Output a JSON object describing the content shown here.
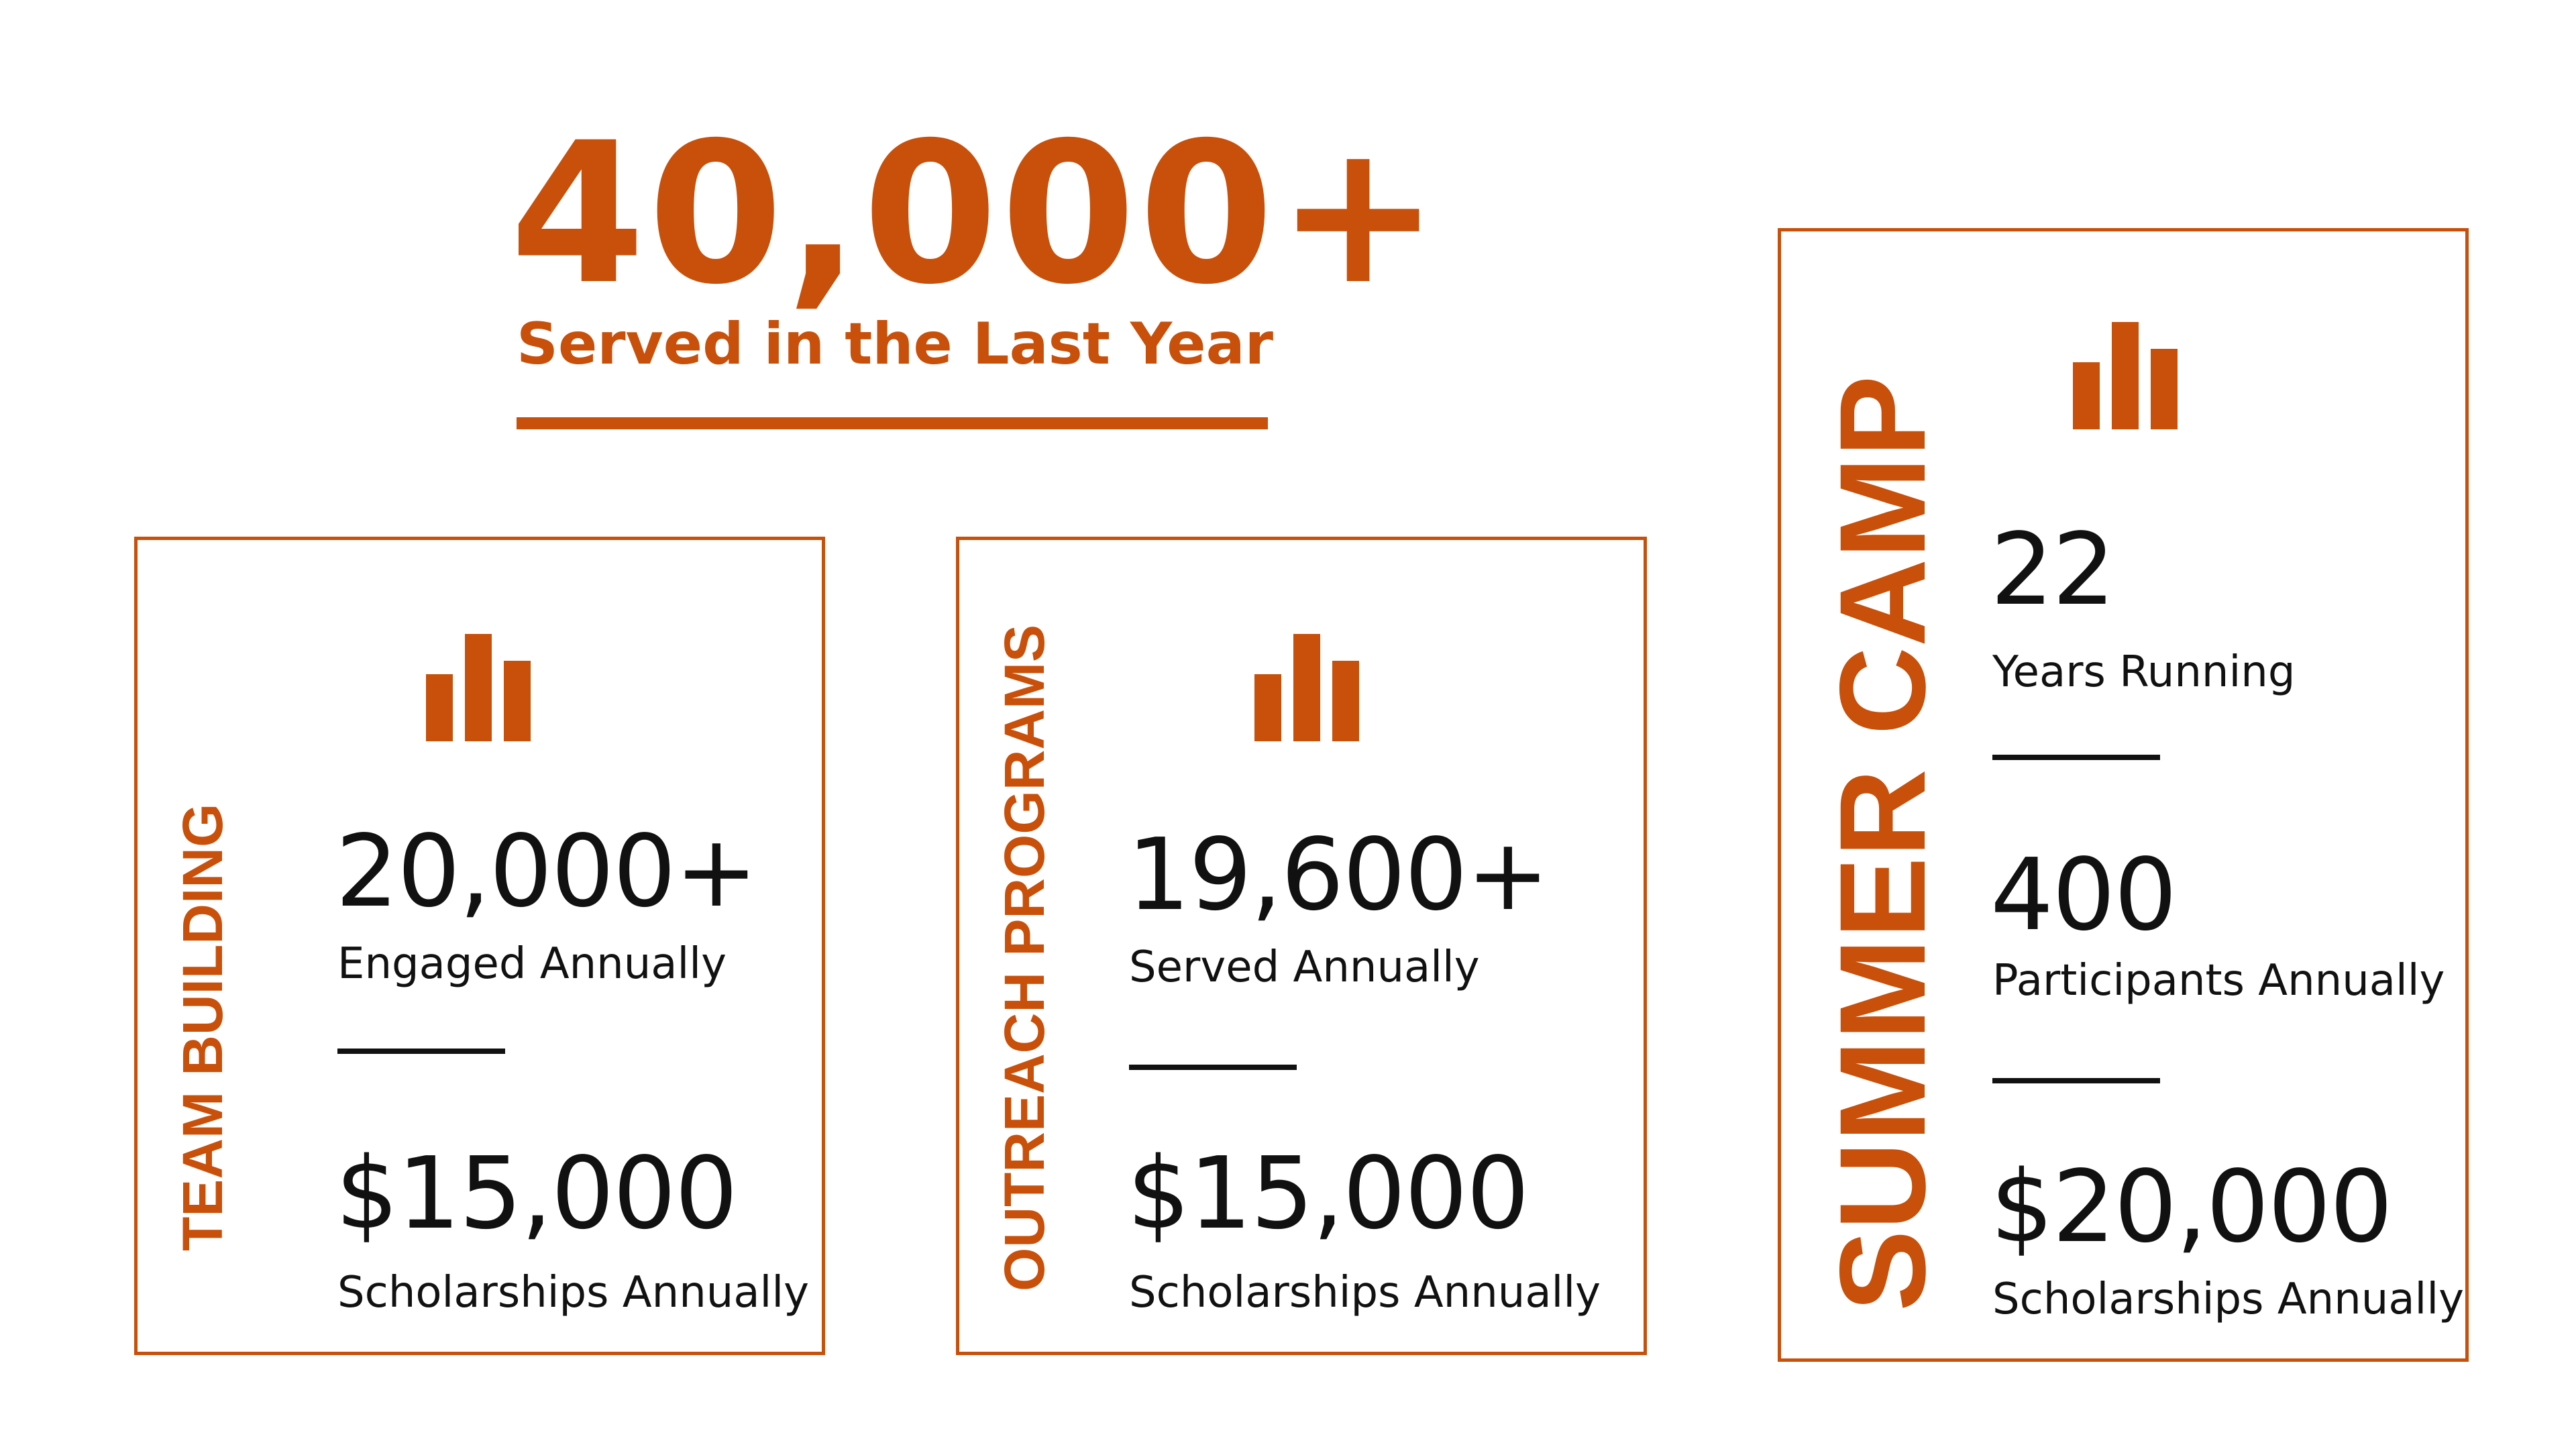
{
  "hero": {
    "number": "40,000+",
    "subtitle": "Served in the Last Year"
  },
  "colors": {
    "accent": "#c8500a",
    "text": "#111111",
    "background": "#ffffff"
  },
  "cards": [
    {
      "title": "TEAM BUILDING",
      "icon": "bar-chart-icon",
      "stats": [
        {
          "value": "20,000+",
          "label": "Engaged Annually"
        },
        {
          "value": "$15,000",
          "label": "Scholarships Annually"
        }
      ]
    },
    {
      "title": "OUTREACH PROGRAMS",
      "icon": "bar-chart-icon",
      "stats": [
        {
          "value": "19,600+",
          "label": "Served Annually"
        },
        {
          "value": "$15,000",
          "label": "Scholarships Annually"
        }
      ]
    },
    {
      "title": "SUMMER CAMP",
      "icon": "bar-chart-icon",
      "stats": [
        {
          "value": "22",
          "label": "Years Running"
        },
        {
          "value": "400",
          "label": "Participants Annually"
        },
        {
          "value": "$20,000",
          "label": "Scholarships Annually"
        }
      ]
    }
  ]
}
